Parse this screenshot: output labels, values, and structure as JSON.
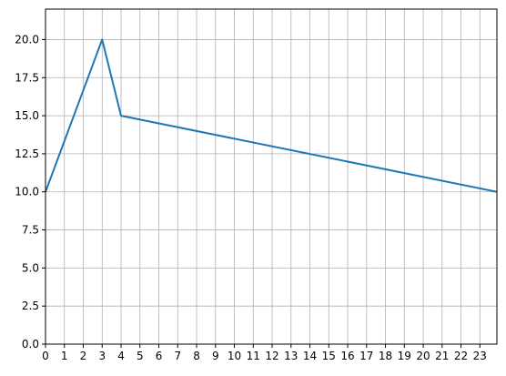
{
  "chart_data": {
    "type": "line",
    "title": "",
    "xlabel": "",
    "ylabel": "",
    "xlim": [
      0,
      23.9
    ],
    "ylim": [
      0,
      22
    ],
    "grid": true,
    "x_ticks": [
      0,
      1,
      2,
      3,
      4,
      5,
      6,
      7,
      8,
      9,
      10,
      11,
      12,
      13,
      14,
      15,
      16,
      17,
      18,
      19,
      20,
      21,
      22,
      23
    ],
    "x_tick_labels": [
      "0",
      "1",
      "2",
      "3",
      "4",
      "5",
      "6",
      "7",
      "8",
      "9",
      "10",
      "11",
      "12",
      "13",
      "14",
      "15",
      "16",
      "17",
      "18",
      "19",
      "20",
      "21",
      "22",
      "23"
    ],
    "y_ticks": [
      0,
      2.5,
      5,
      7.5,
      10,
      12.5,
      15,
      17.5,
      20
    ],
    "y_tick_labels": [
      "0.0",
      "2.5",
      "5.0",
      "7.5",
      "10.0",
      "12.5",
      "15.0",
      "17.5",
      "20.0"
    ],
    "series": [
      {
        "color": "#1f77b4",
        "x": [
          0,
          3,
          4,
          23.9
        ],
        "y": [
          10,
          20,
          15,
          10
        ]
      }
    ]
  }
}
